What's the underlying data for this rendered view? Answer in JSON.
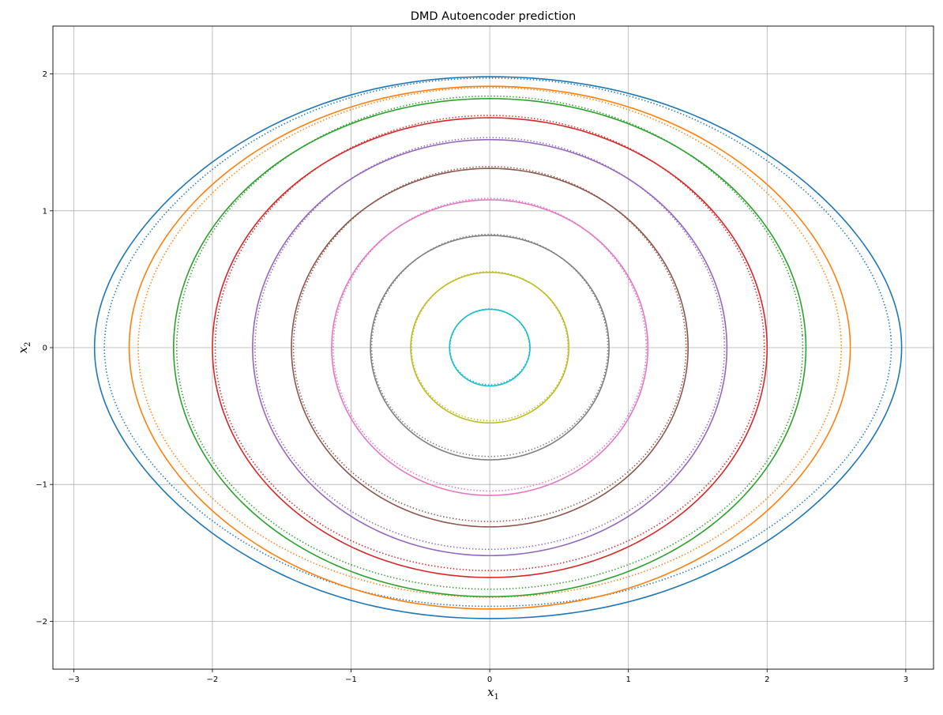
{
  "chart_data": {
    "type": "scatter",
    "title": "DMD Autoencoder prediction",
    "xlabel": "x",
    "xlabel_sub": "1",
    "ylabel": "x",
    "ylabel_sub": "2",
    "xlim": [
      -3.15,
      3.2
    ],
    "ylim": [
      -2.35,
      2.35
    ],
    "xticks": [
      -3,
      -2,
      -1,
      0,
      1,
      2,
      3
    ],
    "yticks": [
      -2,
      -1,
      0,
      1,
      2
    ],
    "xtick_labels": [
      "−3",
      "−2",
      "−1",
      "0",
      "1",
      "2",
      "3"
    ],
    "ytick_labels": [
      "−2",
      "−1",
      "0",
      "1",
      "2"
    ],
    "grid": true,
    "legend": "none",
    "series": [
      {
        "color": "#1f77b4",
        "x_amplitude": 2.85,
        "y_amplitude": 1.98,
        "x_right": 2.97,
        "y_max": 1.98,
        "y_min": -1.98
      },
      {
        "color": "#ff7f0e",
        "x_amplitude": 2.6,
        "y_amplitude": 1.91,
        "x_right": 2.6,
        "y_max": 1.91,
        "y_min": -1.91
      },
      {
        "color": "#2ca02c",
        "x_amplitude": 2.28,
        "y_amplitude": 1.82,
        "x_right": 2.28,
        "y_max": 1.82,
        "y_min": -1.82
      },
      {
        "color": "#d62728",
        "x_amplitude": 2.0,
        "y_amplitude": 1.68,
        "x_right": 2.0,
        "y_max": 1.68,
        "y_min": -1.7
      },
      {
        "color": "#9467bd",
        "x_amplitude": 1.71,
        "y_amplitude": 1.52,
        "x_right": 1.71,
        "y_max": 1.52,
        "y_min": -1.52
      },
      {
        "color": "#8c564b",
        "x_amplitude": 1.43,
        "y_amplitude": 1.31,
        "x_right": 1.43,
        "y_max": 1.31,
        "y_min": -1.31
      },
      {
        "color": "#e377c2",
        "x_amplitude": 1.14,
        "y_amplitude": 1.08,
        "x_right": 1.15,
        "y_max": 1.08,
        "y_min": -1.09
      },
      {
        "color": "#7f7f7f",
        "x_amplitude": 0.86,
        "y_amplitude": 0.82,
        "x_right": 0.86,
        "y_max": 0.82,
        "y_min": -0.83
      },
      {
        "color": "#bcbd22",
        "x_amplitude": 0.57,
        "y_amplitude": 0.55,
        "x_right": 0.57,
        "y_max": 0.55,
        "y_min": -0.57
      },
      {
        "color": "#17becf",
        "x_amplitude": 0.29,
        "y_amplitude": 0.28,
        "x_right": 0.29,
        "y_max": 0.28,
        "y_min": -0.29
      }
    ]
  }
}
